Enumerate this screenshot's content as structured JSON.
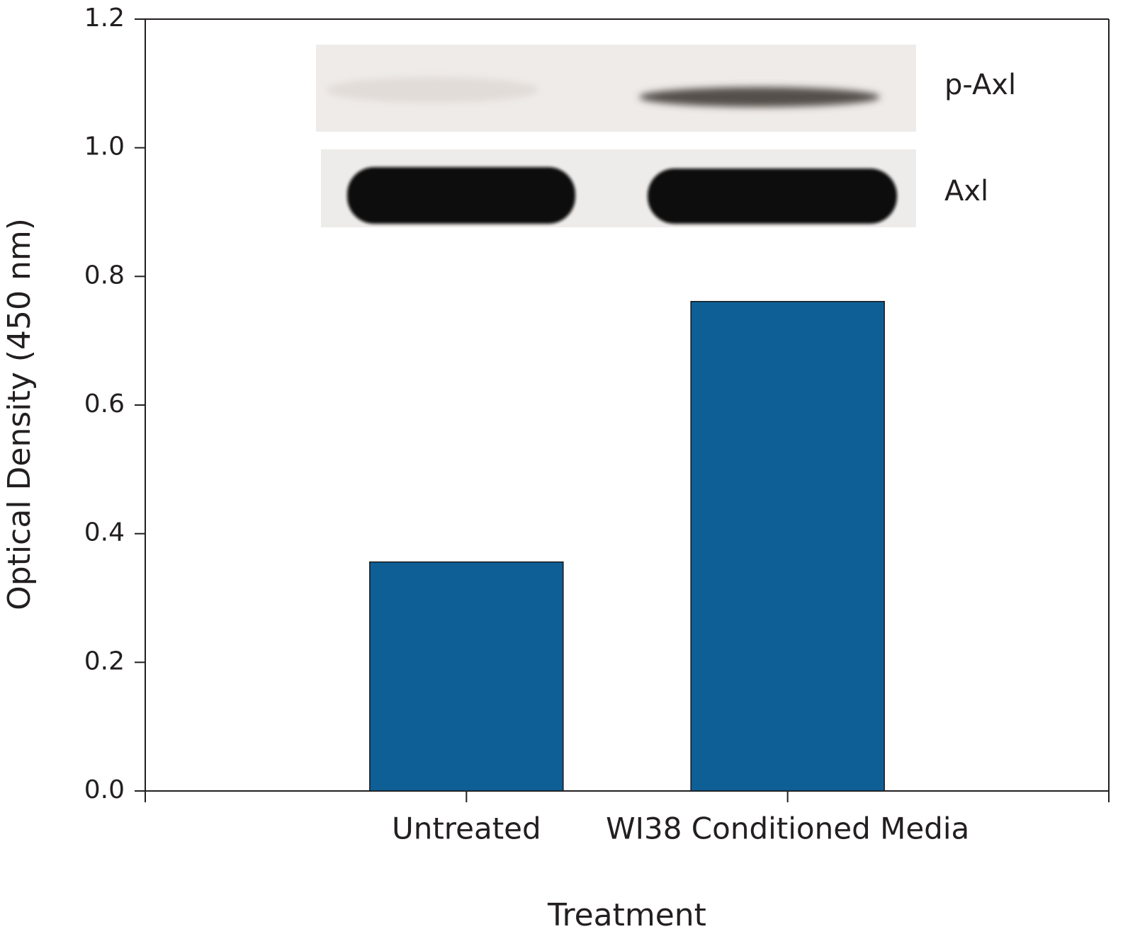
{
  "chart_data": {
    "type": "bar",
    "categories": [
      "Untreated",
      "WI38 Conditioned Media"
    ],
    "values": [
      0.356,
      0.761
    ],
    "color": "#0e5f96",
    "xlabel": "Treatment",
    "ylabel": "Optical Density (450 nm)",
    "ylim": [
      0,
      1.2
    ],
    "yticks": [
      {
        "value": 0,
        "label": "0.0"
      },
      0.2,
      0.4,
      0.6,
      0.8,
      {
        "value": 1,
        "label": "1.0"
      },
      1.2
    ],
    "grid": false,
    "blot_labels": [
      "p-Axl",
      "Axl"
    ]
  }
}
